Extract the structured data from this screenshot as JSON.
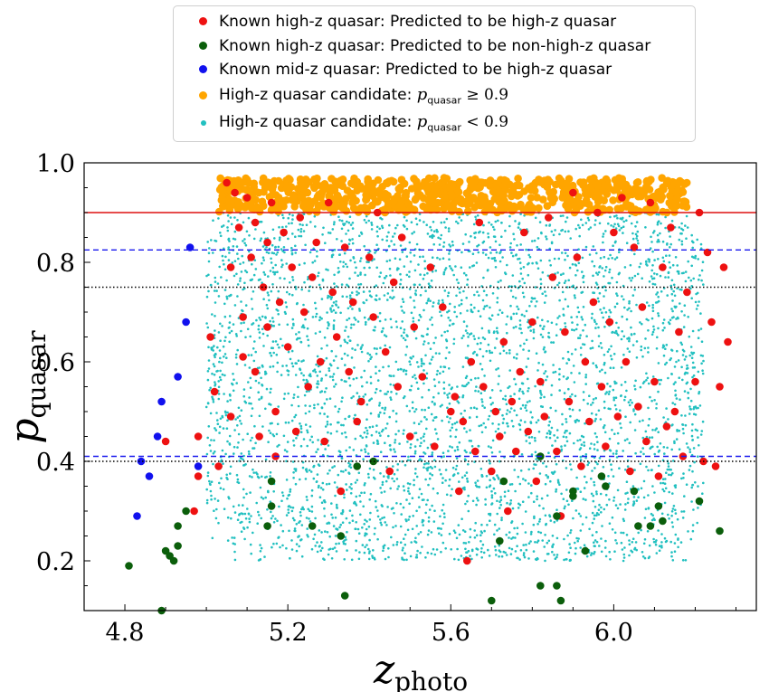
{
  "colors": {
    "known_high_z_hit": "#ee1111",
    "known_high_z_miss": "#0b5e0b",
    "mid_z": "#1111ee",
    "candidate_high": "#ffa500",
    "candidate_low": "#22c0c0",
    "threshold_line": "#dd1111",
    "blue_dashed": "#1a1aee",
    "black_dotted": "#000000"
  },
  "legend": [
    {
      "text": "Known high-z quasar: Predicted to be high-z quasar",
      "color_key": "known_high_z_hit"
    },
    {
      "text": "Known high-z quasar: Predicted to be non-high-z quasar",
      "color_key": "known_high_z_miss"
    },
    {
      "text": "Known mid-z quasar: Predicted to be high-z quasar",
      "color_key": "mid_z"
    },
    {
      "text": "High-z quasar candidate: ",
      "math": "p",
      "math_sub": "quasar",
      "math_rest": " ≥ 0.9",
      "color_key": "candidate_high"
    },
    {
      "text": "High-z quasar candidate: ",
      "math": "p",
      "math_sub": "quasar",
      "math_rest": " < 0.9",
      "color_key": "candidate_low"
    }
  ],
  "chart_data": {
    "type": "scatter",
    "xlabel": "z",
    "xlabel_sub": "photo",
    "ylabel": "p",
    "ylabel_sub": "quasar",
    "xlim": [
      4.7,
      6.35
    ],
    "ylim": [
      0.1,
      1.0
    ],
    "x_ticks": [
      4.8,
      5.2,
      5.6,
      6.0
    ],
    "x_tick_labels": [
      "4.8",
      "5.2",
      "5.6",
      "6.0"
    ],
    "y_ticks": [
      0.2,
      0.4,
      0.6,
      0.8,
      1.0
    ],
    "y_tick_labels": [
      "0.2",
      "0.4",
      "0.6",
      "0.8",
      "1.0"
    ],
    "hlines": [
      {
        "y": 0.9,
        "style": "solid",
        "color_key": "threshold_line"
      },
      {
        "y": 0.825,
        "style": "dashed",
        "color_key": "blue_dashed"
      },
      {
        "y": 0.75,
        "style": "dotted",
        "color_key": "black_dotted"
      },
      {
        "y": 0.41,
        "style": "dashed",
        "color_key": "blue_dashed"
      },
      {
        "y": 0.4,
        "style": "dotted",
        "color_key": "black_dotted"
      }
    ],
    "candidate_low_region": {
      "x_range": [
        5.0,
        6.22
      ],
      "y_range": [
        0.2,
        0.9
      ],
      "approx_count": 4000
    },
    "series": [
      {
        "name": "Known high-z quasar: Predicted to be high-z quasar",
        "color_key": "known_high_z_hit",
        "points": [
          [
            4.9,
            0.44
          ],
          [
            4.97,
            0.3
          ],
          [
            4.98,
            0.37
          ],
          [
            4.98,
            0.45
          ],
          [
            5.01,
            0.65
          ],
          [
            5.02,
            0.54
          ],
          [
            5.03,
            0.39
          ],
          [
            5.05,
            0.96
          ],
          [
            5.06,
            0.79
          ],
          [
            5.06,
            0.49
          ],
          [
            5.07,
            0.94
          ],
          [
            5.08,
            0.87
          ],
          [
            5.09,
            0.69
          ],
          [
            5.09,
            0.61
          ],
          [
            5.1,
            0.93
          ],
          [
            5.11,
            0.81
          ],
          [
            5.12,
            0.88
          ],
          [
            5.12,
            0.58
          ],
          [
            5.13,
            0.45
          ],
          [
            5.14,
            0.75
          ],
          [
            5.15,
            0.84
          ],
          [
            5.15,
            0.67
          ],
          [
            5.16,
            0.92
          ],
          [
            5.17,
            0.5
          ],
          [
            5.17,
            0.41
          ],
          [
            5.18,
            0.72
          ],
          [
            5.19,
            0.86
          ],
          [
            5.2,
            0.63
          ],
          [
            5.21,
            0.79
          ],
          [
            5.22,
            0.46
          ],
          [
            5.23,
            0.89
          ],
          [
            5.24,
            0.7
          ],
          [
            5.25,
            0.55
          ],
          [
            5.26,
            0.77
          ],
          [
            5.27,
            0.84
          ],
          [
            5.28,
            0.6
          ],
          [
            5.29,
            0.44
          ],
          [
            5.3,
            0.92
          ],
          [
            5.31,
            0.74
          ],
          [
            5.32,
            0.65
          ],
          [
            5.33,
            0.34
          ],
          [
            5.34,
            0.83
          ],
          [
            5.35,
            0.58
          ],
          [
            5.36,
            0.72
          ],
          [
            5.37,
            0.48
          ],
          [
            5.38,
            0.52
          ],
          [
            5.4,
            0.81
          ],
          [
            5.41,
            0.69
          ],
          [
            5.42,
            0.9
          ],
          [
            5.44,
            0.62
          ],
          [
            5.45,
            0.38
          ],
          [
            5.46,
            0.76
          ],
          [
            5.47,
            0.55
          ],
          [
            5.48,
            0.85
          ],
          [
            5.5,
            0.45
          ],
          [
            5.51,
            0.67
          ],
          [
            5.53,
            0.57
          ],
          [
            5.55,
            0.79
          ],
          [
            5.56,
            0.43
          ],
          [
            5.58,
            0.71
          ],
          [
            5.6,
            0.5
          ],
          [
            5.61,
            0.53
          ],
          [
            5.62,
            0.34
          ],
          [
            5.63,
            0.48
          ],
          [
            5.64,
            0.2
          ],
          [
            5.65,
            0.6
          ],
          [
            5.66,
            0.42
          ],
          [
            5.67,
            0.88
          ],
          [
            5.68,
            0.55
          ],
          [
            5.7,
            0.38
          ],
          [
            5.71,
            0.5
          ],
          [
            5.72,
            0.45
          ],
          [
            5.73,
            0.64
          ],
          [
            5.74,
            0.3
          ],
          [
            5.75,
            0.52
          ],
          [
            5.76,
            0.42
          ],
          [
            5.77,
            0.58
          ],
          [
            5.78,
            0.86
          ],
          [
            5.79,
            0.46
          ],
          [
            5.8,
            0.68
          ],
          [
            5.81,
            0.36
          ],
          [
            5.82,
            0.56
          ],
          [
            5.83,
            0.49
          ],
          [
            5.84,
            0.89
          ],
          [
            5.85,
            0.77
          ],
          [
            5.86,
            0.42
          ],
          [
            5.87,
            0.29
          ],
          [
            5.88,
            0.66
          ],
          [
            5.89,
            0.52
          ],
          [
            5.9,
            0.94
          ],
          [
            5.91,
            0.81
          ],
          [
            5.92,
            0.39
          ],
          [
            5.93,
            0.6
          ],
          [
            5.94,
            0.48
          ],
          [
            5.95,
            0.72
          ],
          [
            5.96,
            0.9
          ],
          [
            5.97,
            0.55
          ],
          [
            5.98,
            0.43
          ],
          [
            5.99,
            0.68
          ],
          [
            6.0,
            0.86
          ],
          [
            6.01,
            0.49
          ],
          [
            6.02,
            0.93
          ],
          [
            6.03,
            0.6
          ],
          [
            6.04,
            0.38
          ],
          [
            6.05,
            0.83
          ],
          [
            6.06,
            0.51
          ],
          [
            6.07,
            0.71
          ],
          [
            6.08,
            0.44
          ],
          [
            6.09,
            0.92
          ],
          [
            6.1,
            0.56
          ],
          [
            6.11,
            0.37
          ],
          [
            6.12,
            0.79
          ],
          [
            6.13,
            0.47
          ],
          [
            6.14,
            0.87
          ],
          [
            6.15,
            0.5
          ],
          [
            6.16,
            0.66
          ],
          [
            6.17,
            0.41
          ],
          [
            6.18,
            0.74
          ],
          [
            6.2,
            0.56
          ],
          [
            6.21,
            0.9
          ],
          [
            6.22,
            0.4
          ],
          [
            6.23,
            0.82
          ],
          [
            6.24,
            0.68
          ],
          [
            6.25,
            0.39
          ],
          [
            6.26,
            0.55
          ],
          [
            6.27,
            0.79
          ],
          [
            6.28,
            0.64
          ]
        ]
      },
      {
        "name": "Known high-z quasar: Predicted to be non-high-z quasar",
        "color_key": "known_high_z_miss",
        "points": [
          [
            4.81,
            0.19
          ],
          [
            4.9,
            0.22
          ],
          [
            4.91,
            0.21
          ],
          [
            4.92,
            0.2
          ],
          [
            4.93,
            0.27
          ],
          [
            4.93,
            0.23
          ],
          [
            4.95,
            0.3
          ],
          [
            4.89,
            0.1
          ],
          [
            5.16,
            0.36
          ],
          [
            5.16,
            0.31
          ],
          [
            5.15,
            0.27
          ],
          [
            5.26,
            0.27
          ],
          [
            5.33,
            0.25
          ],
          [
            5.34,
            0.13
          ],
          [
            5.37,
            0.39
          ],
          [
            5.41,
            0.4
          ],
          [
            5.7,
            0.12
          ],
          [
            5.72,
            0.24
          ],
          [
            5.73,
            0.36
          ],
          [
            5.82,
            0.15
          ],
          [
            5.82,
            0.41
          ],
          [
            5.86,
            0.29
          ],
          [
            5.86,
            0.15
          ],
          [
            5.87,
            0.12
          ],
          [
            5.9,
            0.34
          ],
          [
            5.9,
            0.33
          ],
          [
            5.93,
            0.22
          ],
          [
            5.97,
            0.37
          ],
          [
            5.98,
            0.35
          ],
          [
            6.05,
            0.34
          ],
          [
            6.06,
            0.27
          ],
          [
            6.09,
            0.27
          ],
          [
            6.11,
            0.31
          ],
          [
            6.12,
            0.28
          ],
          [
            6.21,
            0.32
          ],
          [
            6.26,
            0.26
          ]
        ]
      },
      {
        "name": "Known mid-z quasar: Predicted to be high-z quasar",
        "color_key": "mid_z",
        "points": [
          [
            4.83,
            0.29
          ],
          [
            4.84,
            0.4
          ],
          [
            4.86,
            0.37
          ],
          [
            4.88,
            0.45
          ],
          [
            4.89,
            0.52
          ],
          [
            4.93,
            0.57
          ],
          [
            4.95,
            0.68
          ],
          [
            4.96,
            0.83
          ],
          [
            4.98,
            0.39
          ]
        ]
      },
      {
        "name": "High-z quasar candidate: p_quasar ≥ 0.9",
        "color_key": "candidate_high",
        "x_range": [
          5.03,
          6.18
        ],
        "y_range": [
          0.9,
          0.97
        ],
        "approx_count": 700
      }
    ]
  }
}
